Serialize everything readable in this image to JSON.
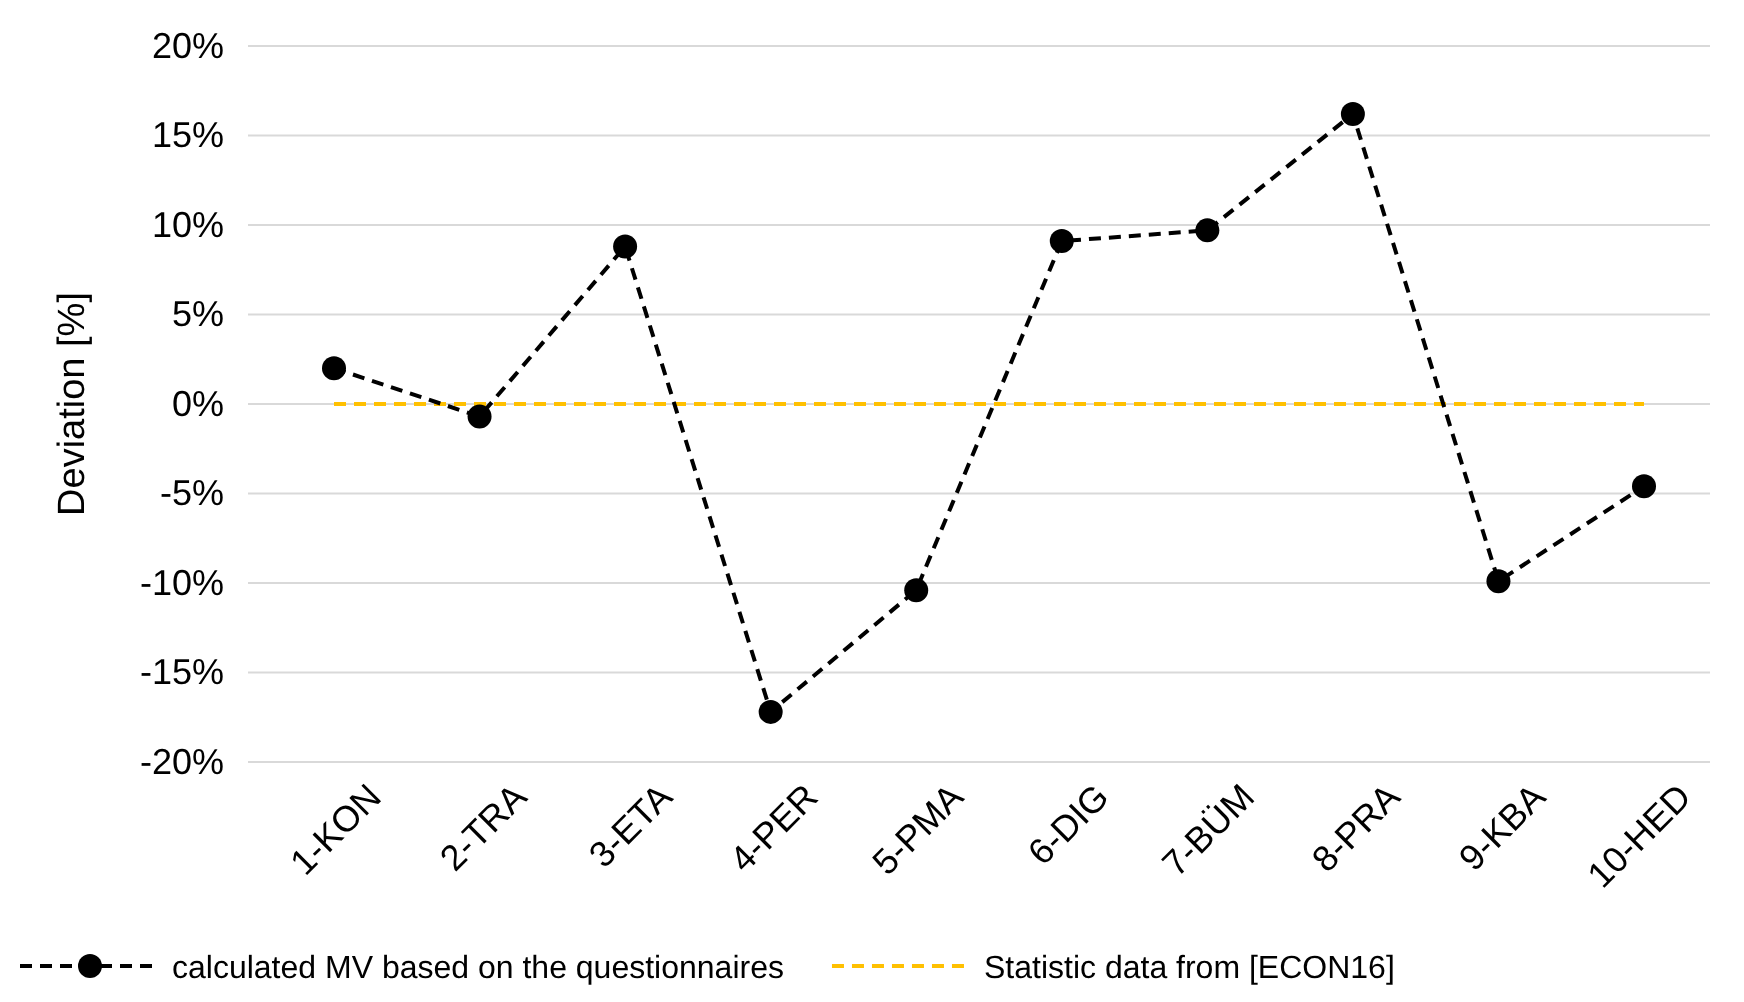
{
  "chart_data": {
    "type": "line",
    "ylabel": "Deviation [%]",
    "categories": [
      "1-KON",
      "2-TRA",
      "3-ETA",
      "4-PER",
      "5-PMA",
      "6-DIG",
      "7-BÜM",
      "8-PRA",
      "9-KBA",
      "10-HED"
    ],
    "series": [
      {
        "name": "calculated MV based on the questionnaires",
        "color": "#000000",
        "marker": "circle",
        "line_style": "dashed",
        "values": [
          2.0,
          -0.7,
          8.8,
          -17.2,
          -10.4,
          9.1,
          9.7,
          16.2,
          -9.9,
          -4.6
        ]
      },
      {
        "name": "Statistic data from [ECON16]",
        "color": "#ffc000",
        "marker": "none",
        "line_style": "dashed",
        "values": [
          0,
          0,
          0,
          0,
          0,
          0,
          0,
          0,
          0,
          0
        ]
      }
    ],
    "ylim": [
      -20,
      20
    ],
    "yticks": [
      {
        "value": -20,
        "label": "-20%"
      },
      {
        "value": -15,
        "label": "-15%"
      },
      {
        "value": -10,
        "label": "-10%"
      },
      {
        "value": -5,
        "label": "-5%"
      },
      {
        "value": 0,
        "label": "0%"
      },
      {
        "value": 5,
        "label": "5%"
      },
      {
        "value": 10,
        "label": "10%"
      },
      {
        "value": 15,
        "label": "15%"
      },
      {
        "value": 20,
        "label": "20%"
      }
    ],
    "grid": "y",
    "legend": "bottom"
  }
}
